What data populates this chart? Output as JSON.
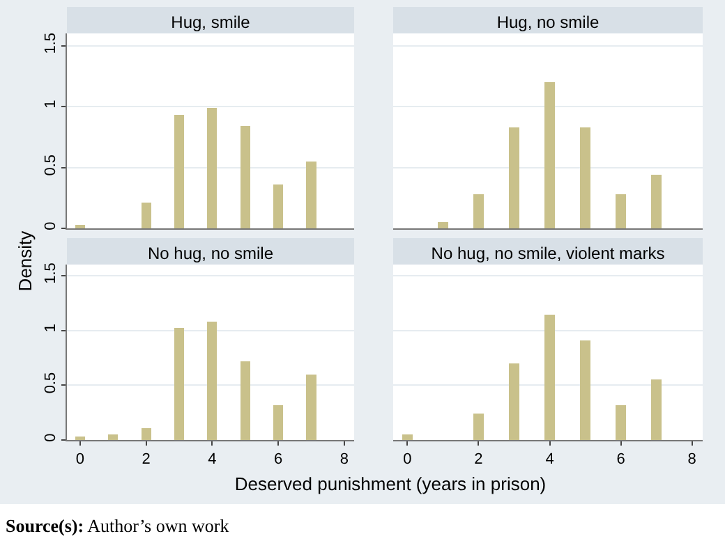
{
  "chart_data": [
    {
      "type": "bar",
      "title": "Hug, smile",
      "ylabel": "Density",
      "x": [
        0,
        2,
        3,
        4,
        5,
        6,
        7
      ],
      "values": [
        0.03,
        0.21,
        0.93,
        0.99,
        0.84,
        0.36,
        0.55
      ],
      "color": "#c9c18b",
      "xlim": [
        -0.4,
        8.3
      ],
      "ylim": [
        0,
        1.6
      ],
      "xticks": [
        0,
        2,
        4,
        6,
        8
      ],
      "yticks": [
        0,
        0.5,
        1,
        1.5
      ],
      "grid": "y",
      "tick_labels": "y"
    },
    {
      "type": "bar",
      "title": "Hug, no smile",
      "x": [
        1,
        2,
        3,
        4,
        5,
        6,
        7
      ],
      "values": [
        0.05,
        0.28,
        0.83,
        1.2,
        0.83,
        0.28,
        0.44
      ],
      "color": "#c9c18b",
      "xlim": [
        -0.4,
        8.3
      ],
      "ylim": [
        0,
        1.6
      ],
      "xticks": [
        0,
        2,
        4,
        6,
        8
      ],
      "yticks": [
        0,
        0.5,
        1,
        1.5
      ],
      "grid": "y",
      "tick_labels": false
    },
    {
      "type": "bar",
      "title": "No hug, no smile",
      "xlabel": "Deserved punishment (years in prison)",
      "x": [
        0,
        1,
        2,
        3,
        4,
        5,
        6,
        7
      ],
      "values": [
        0.03,
        0.05,
        0.11,
        1.02,
        1.08,
        0.72,
        0.32,
        0.6
      ],
      "color": "#c9c18b",
      "xlim": [
        -0.4,
        8.3
      ],
      "ylim": [
        0,
        1.6
      ],
      "xticks": [
        0,
        2,
        4,
        6,
        8
      ],
      "yticks": [
        0,
        0.5,
        1,
        1.5
      ],
      "grid": "y"
    },
    {
      "type": "bar",
      "title": "No hug, no smile, violent marks",
      "x": [
        0,
        2,
        3,
        4,
        5,
        6,
        7
      ],
      "values": [
        0.05,
        0.24,
        0.7,
        1.14,
        0.91,
        0.32,
        0.55
      ],
      "color": "#c9c18b",
      "xlim": [
        -0.4,
        8.3
      ],
      "ylim": [
        0,
        1.6
      ],
      "xticks": [
        0,
        2,
        4,
        6,
        8
      ],
      "yticks": [
        0,
        0.5,
        1,
        1.5
      ],
      "grid": "y",
      "tick_labels": "x",
      "annotations": [
        "Source(s): Author’s own work"
      ]
    }
  ]
}
